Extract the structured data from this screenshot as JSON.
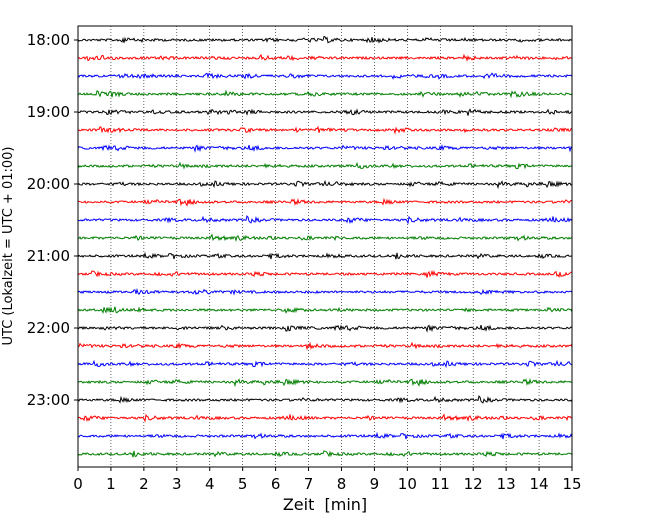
{
  "chart_data": {
    "type": "line",
    "subtype": "helicorder",
    "title": "",
    "xlabel": "Zeit  [min]",
    "ylabel": "UTC (Lokalzeit = UTC + 01:00)",
    "xlim": [
      0,
      15
    ],
    "x_ticks": [
      0,
      1,
      2,
      3,
      4,
      5,
      6,
      7,
      8,
      9,
      10,
      11,
      12,
      13,
      14,
      15
    ],
    "vertical_grid": "dotted",
    "y_tick_labels": [
      "18:00",
      "19:00",
      "20:00",
      "21:00",
      "22:00",
      "23:00"
    ],
    "rows_per_hour": 4,
    "minutes_per_row": 15,
    "trace_colors": [
      "#000000",
      "#ff0000",
      "#0000ff",
      "#007f00"
    ],
    "rows": [
      {
        "start": "18:00",
        "color": "#000000"
      },
      {
        "start": "18:15",
        "color": "#ff0000"
      },
      {
        "start": "18:30",
        "color": "#0000ff"
      },
      {
        "start": "18:45",
        "color": "#007f00"
      },
      {
        "start": "19:00",
        "color": "#000000"
      },
      {
        "start": "19:15",
        "color": "#ff0000"
      },
      {
        "start": "19:30",
        "color": "#0000ff"
      },
      {
        "start": "19:45",
        "color": "#007f00"
      },
      {
        "start": "20:00",
        "color": "#000000"
      },
      {
        "start": "20:15",
        "color": "#ff0000"
      },
      {
        "start": "20:30",
        "color": "#0000ff"
      },
      {
        "start": "20:45",
        "color": "#007f00"
      },
      {
        "start": "21:00",
        "color": "#000000"
      },
      {
        "start": "21:15",
        "color": "#ff0000"
      },
      {
        "start": "21:30",
        "color": "#0000ff"
      },
      {
        "start": "21:45",
        "color": "#007f00"
      },
      {
        "start": "22:00",
        "color": "#000000"
      },
      {
        "start": "22:15",
        "color": "#ff0000"
      },
      {
        "start": "22:30",
        "color": "#0000ff"
      },
      {
        "start": "22:45",
        "color": "#007f00"
      },
      {
        "start": "23:00",
        "color": "#000000"
      },
      {
        "start": "23:15",
        "color": "#ff0000"
      },
      {
        "start": "23:30",
        "color": "#0000ff"
      },
      {
        "start": "23:45",
        "color": "#007f00"
      }
    ]
  }
}
